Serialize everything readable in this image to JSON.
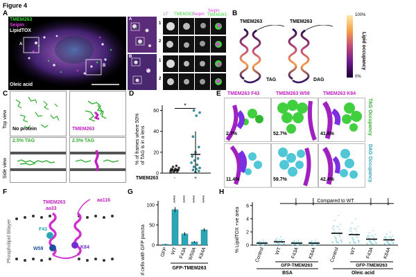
{
  "figure_title": "Figure 4",
  "panels": {
    "A": {
      "letter": "A",
      "channel_labels": [
        "TMEM263",
        "Seipin",
        "LipidTOX"
      ],
      "condition": "Oleic acid",
      "inset_markers": [
        "A",
        "B"
      ],
      "inset_rows": [
        "1",
        "2",
        "1",
        "2"
      ],
      "column_headers": [
        "LT",
        "TMEM263",
        "Seipin",
        "Seipin",
        "TMEM263"
      ],
      "colors": {
        "green": "#3fd33f",
        "magenta": "#e040e0",
        "white": "#ffffff"
      }
    },
    "B": {
      "letter": "B",
      "labels": [
        "TMEM263",
        "TMEM263"
      ],
      "conditions": [
        "TAG",
        "DAG"
      ],
      "colorbar_title": "Lipid occupancy",
      "colorbar_max": "100%",
      "colorbar_min": "0%"
    },
    "C": {
      "letter": "C",
      "row_labels": [
        "Top view",
        "Side view"
      ],
      "tiles": [
        "No protein",
        "TMEM263",
        "2.5% TAG",
        "2.5% TAG"
      ]
    },
    "D": {
      "letter": "D",
      "ylabel_lines": [
        "% of frames where 50%",
        "of TAG is in a lens"
      ],
      "yticks": [
        "0",
        "20",
        "40",
        "60"
      ],
      "categories": [
        "-",
        "+"
      ],
      "xlabel": "TMEM263",
      "significance": "*"
    },
    "E": {
      "letter": "E",
      "headers": [
        "TMEM263 F43",
        "TMEM263 W59",
        "TMEM263 K84"
      ],
      "row_labels": [
        "TAG Occupancy",
        "DAG Occupancy"
      ],
      "tag_values": [
        "2.7%",
        "52.7%",
        "41.6%"
      ],
      "dag_values": [
        "11.4%",
        "59.7%",
        "42.4%"
      ]
    },
    "F": {
      "letter": "F",
      "protein": "TMEM263",
      "termini": [
        "aa33",
        "aa116"
      ],
      "residues": [
        "F43",
        "W59",
        "K84"
      ],
      "side_label": "Phospholipid Bilayer"
    },
    "G": {
      "letter": "G",
      "ylabel": "% of cells with GFP puncta",
      "yticks": [
        "0",
        "50",
        "100"
      ],
      "xlabel_group": "GFP-TMEM263",
      "significance": [
        "****",
        "****",
        "****",
        "****"
      ]
    },
    "H": {
      "letter": "H",
      "ylabel": "% LipidTOX +ve area",
      "yticks": [
        "0",
        "2",
        "4",
        "6"
      ],
      "compare_label": "Compared to WT",
      "groups": [
        "BSA",
        "Oleic acid"
      ],
      "subgroup": "GFP-TMEM263",
      "significance": [
        "****",
        "****",
        "****",
        "****"
      ]
    }
  },
  "chart_data": [
    {
      "type": "scatter",
      "panel": "D",
      "categories": [
        "-",
        "+"
      ],
      "ylabel": "% of frames where 50% of TAG is in a lens",
      "xlabel": "TMEM263",
      "ylim": [
        0,
        65
      ],
      "means": [
        3,
        18
      ],
      "errors": [
        2,
        22
      ],
      "points": [
        [
          0,
          0.5
        ],
        [
          0,
          1
        ],
        [
          0,
          1.5
        ],
        [
          0,
          2
        ],
        [
          0,
          2.5
        ],
        [
          0,
          3
        ],
        [
          0,
          3.5
        ],
        [
          0,
          4
        ],
        [
          0,
          5
        ],
        [
          0,
          6
        ],
        [
          0,
          7
        ],
        [
          0,
          2
        ],
        [
          0,
          1
        ],
        [
          0,
          3
        ],
        [
          0,
          4
        ],
        [
          1,
          1
        ],
        [
          1,
          2
        ],
        [
          1,
          3
        ],
        [
          1,
          4
        ],
        [
          1,
          5
        ],
        [
          1,
          6
        ],
        [
          1,
          8
        ],
        [
          1,
          10
        ],
        [
          1,
          12
        ],
        [
          1,
          14
        ],
        [
          1,
          16
        ],
        [
          1,
          20
        ],
        [
          1,
          25
        ],
        [
          1,
          35
        ],
        [
          1,
          55
        ],
        [
          1,
          58
        ],
        [
          1,
          60
        ]
      ]
    },
    {
      "type": "bar",
      "panel": "G",
      "categories": [
        "GFP",
        "WT",
        "F43A",
        "W59A",
        "K84A"
      ],
      "values": [
        2,
        88,
        28,
        8,
        38
      ],
      "errors": [
        1,
        6,
        4,
        2,
        4
      ],
      "ylabel": "% of cells with GFP puncta",
      "ylim": [
        0,
        110
      ]
    },
    {
      "type": "scatter",
      "panel": "H",
      "categories": [
        "Control",
        "WT",
        "F43A",
        "K84A",
        "Control",
        "WT",
        "F43A",
        "K84A"
      ],
      "groups": [
        "BSA",
        "BSA",
        "BSA",
        "BSA",
        "Oleic acid",
        "Oleic acid",
        "Oleic acid",
        "Oleic acid"
      ],
      "medians": [
        0.3,
        0.5,
        0.3,
        0.3,
        1.8,
        1.6,
        0.9,
        0.8
      ],
      "ylabel": "% LipidTOX +ve area",
      "ylim": [
        0,
        6.5
      ]
    }
  ]
}
